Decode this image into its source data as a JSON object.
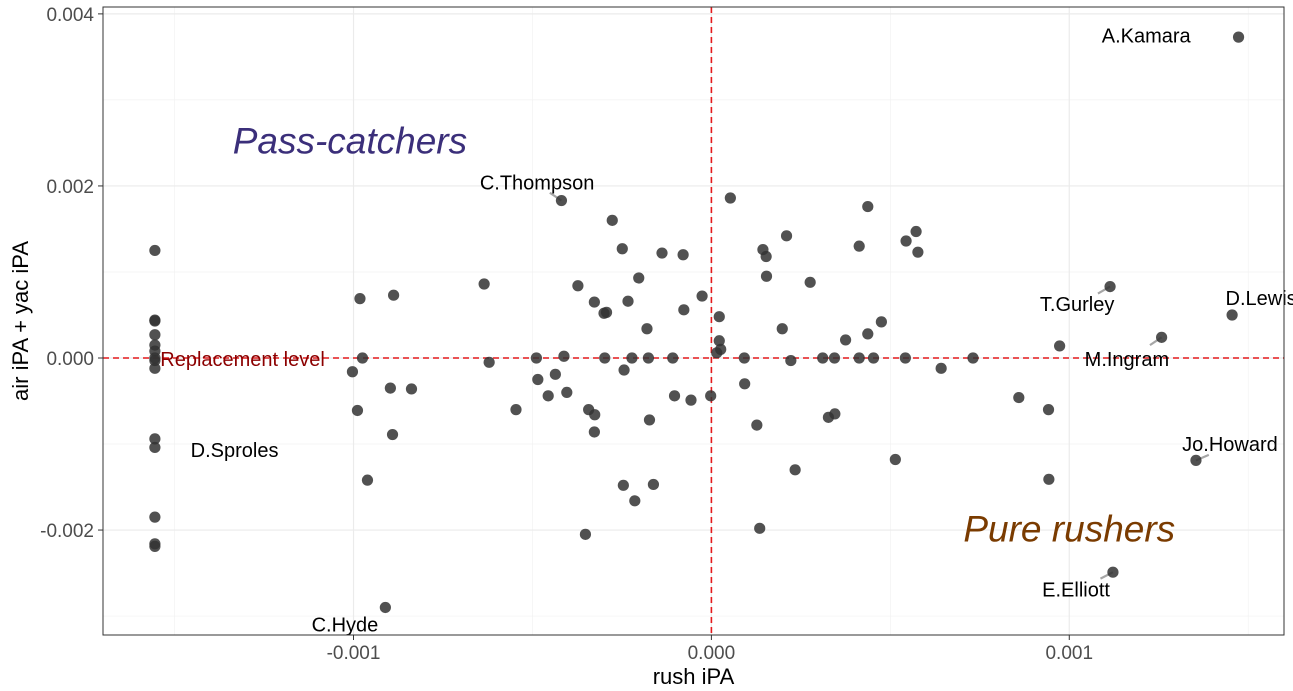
{
  "chart_data": {
    "type": "scatter",
    "title": "",
    "xlabel": "rush iPA",
    "ylabel": "air iPA + yac iPA",
    "xlim": [
      -0.0017,
      0.0016
    ],
    "ylim": [
      -0.00322,
      0.00408
    ],
    "x_ticks": [
      {
        "value": -0.001,
        "label": "-0.001"
      },
      {
        "value": 0.0,
        "label": "0.000"
      },
      {
        "value": 0.001,
        "label": "0.001"
      }
    ],
    "y_ticks": [
      {
        "value": -0.002,
        "label": "-0.002"
      },
      {
        "value": 0.0,
        "label": "0.000"
      },
      {
        "value": 0.002,
        "label": "0.002"
      },
      {
        "value": 0.004,
        "label": "0.004"
      }
    ],
    "grid": true,
    "colors": {
      "points": "#333333",
      "reference_line": "#e41a1c",
      "replacement_text": "#8b0000",
      "pass_catchers": "#3b2f7a",
      "pure_rushers": "#7a3b00",
      "leader": "#a6a6a6"
    },
    "reference_lines": {
      "x": 0,
      "y": 0
    },
    "reference_text": {
      "text": "Replacement level",
      "x": -0.00154,
      "y": -3e-05
    },
    "region_labels": [
      {
        "text": "Pass-catchers",
        "x": -0.00101,
        "y": 0.00249,
        "color_key": "pass_catchers"
      },
      {
        "text": "Pure rushers",
        "x": 0.001,
        "y": -0.00202,
        "color_key": "pure_rushers"
      }
    ],
    "labeled_points": [
      {
        "name": "A.Kamara",
        "x": 0.001473,
        "y": 0.00373,
        "lx": 0.001215,
        "ly": 0.00373,
        "anchor": "middle",
        "leader": false
      },
      {
        "name": "C.Thompson",
        "x": -0.000419,
        "y": 0.00183,
        "lx": -0.000487,
        "ly": 0.00202,
        "anchor": "middle",
        "leader": true
      },
      {
        "name": "T.Gurley",
        "x": 0.001114,
        "y": 0.00083,
        "lx": 0.001022,
        "ly": 0.00061,
        "anchor": "middle",
        "leader": true
      },
      {
        "name": "D.Lewis",
        "x": 0.001455,
        "y": 0.0005,
        "lx": 0.001536,
        "ly": 0.00068,
        "anchor": "middle",
        "leader": false
      },
      {
        "name": "M.Ingram",
        "x": 0.001258,
        "y": 0.00024,
        "lx": 0.001161,
        "ly": -3e-05,
        "anchor": "middle",
        "leader": true
      },
      {
        "name": "Jo.Howard",
        "x": 0.001354,
        "y": -0.00119,
        "lx": 0.001449,
        "ly": -0.00102,
        "anchor": "middle",
        "leader": true
      },
      {
        "name": "E.Elliott",
        "x": 0.001122,
        "y": -0.00249,
        "lx": 0.001019,
        "ly": -0.00271,
        "anchor": "middle",
        "leader": true
      },
      {
        "name": "C.Hyde",
        "x": -0.000911,
        "y": -0.0029,
        "lx": -0.001024,
        "ly": -0.00312,
        "anchor": "middle",
        "leader": false
      },
      {
        "name": "D.Sproles",
        "x": -0.001555,
        "y": -0.00104,
        "lx": -0.001455,
        "ly": -0.00109,
        "anchor": "start",
        "leader": false
      }
    ],
    "points": [
      {
        "x": -0.001555,
        "y": 0.00125
      },
      {
        "x": -0.001555,
        "y": 0.00044
      },
      {
        "x": -0.001555,
        "y": 0.00043
      },
      {
        "x": -0.001555,
        "y": 0.00027
      },
      {
        "x": -0.001555,
        "y": 0.00015
      },
      {
        "x": -0.001555,
        "y": 8e-05
      },
      {
        "x": -0.001555,
        "y": 0.0
      },
      {
        "x": -0.001555,
        "y": -3e-05
      },
      {
        "x": -0.001555,
        "y": -0.00012
      },
      {
        "x": -0.001555,
        "y": -0.00094
      },
      {
        "x": -0.001555,
        "y": -0.00104
      },
      {
        "x": -0.001555,
        "y": -0.00185
      },
      {
        "x": -0.001555,
        "y": -0.00216
      },
      {
        "x": -0.001555,
        "y": -0.00219
      },
      {
        "x": -0.000911,
        "y": -0.0029
      },
      {
        "x": -0.000982,
        "y": 0.00069
      },
      {
        "x": -0.000888,
        "y": 0.00073
      },
      {
        "x": -0.000635,
        "y": 0.00086
      },
      {
        "x": -0.000621,
        "y": -5e-05
      },
      {
        "x": -0.001003,
        "y": -0.00016
      },
      {
        "x": -0.000975,
        "y": 0.0
      },
      {
        "x": -0.000989,
        "y": -0.00061
      },
      {
        "x": -0.000961,
        "y": -0.00142
      },
      {
        "x": -0.000897,
        "y": -0.00035
      },
      {
        "x": -0.000891,
        "y": -0.00089
      },
      {
        "x": -0.000838,
        "y": -0.00036
      },
      {
        "x": -0.000546,
        "y": -0.0006
      },
      {
        "x": -0.000489,
        "y": 0.0
      },
      {
        "x": -0.000485,
        "y": -0.00025
      },
      {
        "x": -0.000456,
        "y": -0.00044
      },
      {
        "x": -0.000436,
        "y": -0.00019
      },
      {
        "x": -0.000412,
        "y": 2e-05
      },
      {
        "x": -0.000373,
        "y": 0.00084
      },
      {
        "x": -0.000404,
        "y": -0.0004
      },
      {
        "x": -0.000343,
        "y": -0.0006
      },
      {
        "x": -0.000352,
        "y": -0.00205
      },
      {
        "x": -0.000327,
        "y": 0.00065
      },
      {
        "x": -0.000326,
        "y": -0.00066
      },
      {
        "x": -0.000327,
        "y": -0.00086
      },
      {
        "x": -0.0003,
        "y": 0.00052
      },
      {
        "x": -0.000293,
        "y": 0.00053
      },
      {
        "x": -0.000298,
        "y": 0.0
      },
      {
        "x": -0.000277,
        "y": 0.0016
      },
      {
        "x": -0.000249,
        "y": 0.00127
      },
      {
        "x": -0.000244,
        "y": -0.00014
      },
      {
        "x": -0.000246,
        "y": -0.00148
      },
      {
        "x": -0.000233,
        "y": 0.00066
      },
      {
        "x": -0.000222,
        "y": 0.0
      },
      {
        "x": -0.000214,
        "y": -0.00166
      },
      {
        "x": -0.000203,
        "y": 0.00093
      },
      {
        "x": -0.00018,
        "y": 0.00034
      },
      {
        "x": -0.000176,
        "y": 0.0
      },
      {
        "x": -0.000173,
        "y": -0.00072
      },
      {
        "x": -0.000162,
        "y": -0.00147
      },
      {
        "x": -0.000138,
        "y": 0.00122
      },
      {
        "x": -0.000108,
        "y": 0.0
      },
      {
        "x": -0.000103,
        "y": -0.00044
      },
      {
        "x": -7.9e-05,
        "y": 0.0012
      },
      {
        "x": -7.7e-05,
        "y": 0.00056
      },
      {
        "x": -5.7e-05,
        "y": -0.00049
      },
      {
        "x": -2.6e-05,
        "y": 0.00072
      },
      {
        "x": -2e-06,
        "y": -0.00044
      },
      {
        "x": 1.5e-05,
        "y": 6e-05
      },
      {
        "x": 2.2e-05,
        "y": 0.0002
      },
      {
        "x": 2.2e-05,
        "y": 0.00048
      },
      {
        "x": 2.6e-05,
        "y": 0.0001
      },
      {
        "x": 5.3e-05,
        "y": 0.00186
      },
      {
        "x": 9.2e-05,
        "y": 0.0
      },
      {
        "x": 9.3e-05,
        "y": -0.0003
      },
      {
        "x": 0.000127,
        "y": -0.00078
      },
      {
        "x": 0.000135,
        "y": -0.00198
      },
      {
        "x": 0.000144,
        "y": 0.00126
      },
      {
        "x": 0.000153,
        "y": 0.00118
      },
      {
        "x": 0.000154,
        "y": 0.00095
      },
      {
        "x": 0.000198,
        "y": 0.00034
      },
      {
        "x": 0.00021,
        "y": 0.00142
      },
      {
        "x": 0.000222,
        "y": -3e-05
      },
      {
        "x": 0.000234,
        "y": -0.0013
      },
      {
        "x": 0.000276,
        "y": 0.00088
      },
      {
        "x": 0.000311,
        "y": 0.0
      },
      {
        "x": 0.000327,
        "y": -0.00069
      },
      {
        "x": 0.000345,
        "y": -0.00065
      },
      {
        "x": 0.000344,
        "y": 0.0
      },
      {
        "x": 0.000375,
        "y": 0.00021
      },
      {
        "x": 0.000413,
        "y": 0.0013
      },
      {
        "x": 0.000413,
        "y": 0.0
      },
      {
        "x": 0.000437,
        "y": 0.00028
      },
      {
        "x": 0.000437,
        "y": 0.00176
      },
      {
        "x": 0.000453,
        "y": 0.0
      },
      {
        "x": 0.000475,
        "y": 0.00042
      },
      {
        "x": 0.000514,
        "y": -0.00118
      },
      {
        "x": 0.000544,
        "y": 0.00136
      },
      {
        "x": 0.000542,
        "y": 0.0
      },
      {
        "x": 0.000572,
        "y": 0.00147
      },
      {
        "x": 0.000577,
        "y": 0.00123
      },
      {
        "x": 0.000642,
        "y": -0.00012
      },
      {
        "x": 0.000731,
        "y": 0.0
      },
      {
        "x": 0.000859,
        "y": -0.00046
      },
      {
        "x": 0.000942,
        "y": -0.0006
      },
      {
        "x": 0.000943,
        "y": -0.00141
      },
      {
        "x": 0.000973,
        "y": 0.00014
      },
      {
        "x": 0.001114,
        "y": 0.00083
      },
      {
        "x": 0.001258,
        "y": 0.00024
      },
      {
        "x": 0.001455,
        "y": 0.0005
      },
      {
        "x": 0.001354,
        "y": -0.00119
      },
      {
        "x": 0.001122,
        "y": -0.00249
      },
      {
        "x": 0.001473,
        "y": 0.00373
      },
      {
        "x": -0.000419,
        "y": 0.00183
      }
    ]
  }
}
